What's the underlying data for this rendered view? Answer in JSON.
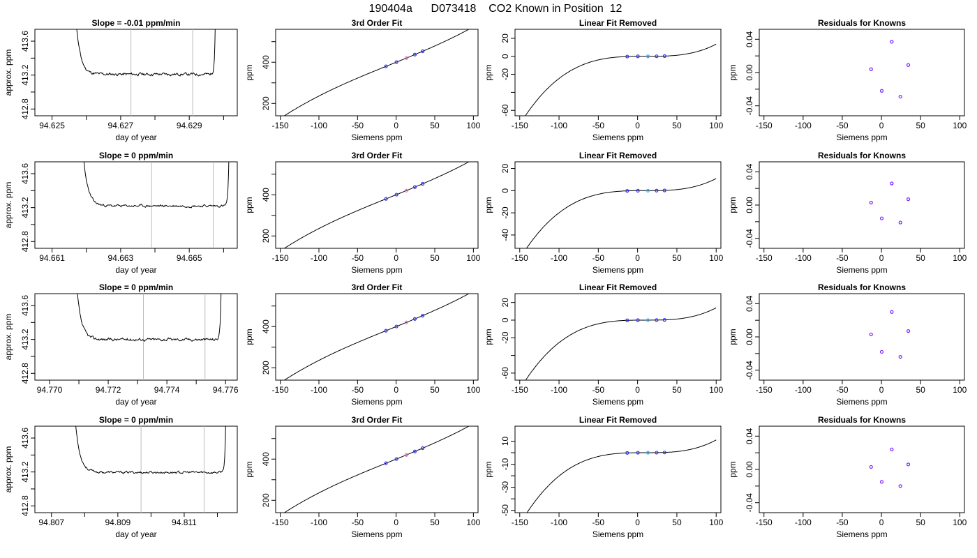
{
  "page": {
    "title": "190404a      D073418    CO2 Known in Position  12"
  },
  "chart_data": [
    {
      "type": "line",
      "title": "Slope =  -0.01  ppm/min",
      "xlabel": "day of year",
      "ylabel": "approx. ppm",
      "xlim": [
        94.6245,
        94.6304
      ],
      "ylim": [
        412.72,
        413.74
      ],
      "xticks": [
        94.625,
        94.627,
        94.629
      ],
      "xticks_minor": [
        94.626,
        94.628,
        94.63
      ],
      "yticks": [
        412.8,
        413.2,
        413.6
      ],
      "yticks_minor": [
        413.0,
        413.4
      ],
      "vlines": [
        94.6273,
        94.6291
      ],
      "baseline": 413.21,
      "window": [
        94.6256,
        94.6298
      ],
      "wiggle_amp": 0.012,
      "seed": 11
    },
    {
      "type": "line",
      "title": "3rd Order Fit",
      "xlabel": "Siemens ppm",
      "ylabel": "ppm",
      "xlim": [
        -156,
        106
      ],
      "ylim": [
        140,
        560
      ],
      "xticks": [
        -150,
        -100,
        -50,
        0,
        50,
        100
      ],
      "yticks": [
        200,
        400
      ],
      "yticks_minor": [
        300,
        500
      ],
      "curve": {
        "kind": "cubic",
        "a0": 400,
        "a1": 1.52,
        "a2": 0.0004,
        "a3": 1.6e-05
      },
      "points_x": [
        -13.2,
        0.4,
        13.2,
        24.2,
        34.3
      ],
      "point_colors": [
        "#3333ff",
        "#3333ff",
        "#ff66cc",
        "#3333ff",
        "#3333ff"
      ]
    },
    {
      "type": "line",
      "title": "Linear Fit Removed",
      "xlabel": "Siemens ppm",
      "ylabel": "ppm",
      "xlim": [
        -156,
        106
      ],
      "ylim": [
        -66,
        30
      ],
      "xticks": [
        -150,
        -100,
        -50,
        0,
        50,
        100
      ],
      "yticks": [
        -60,
        -20,
        0,
        20
      ],
      "yticks_minor": [
        -40
      ],
      "curve": {
        "kind": "residual-cubic",
        "c": 1.85e-05
      },
      "points_x": [
        -13.2,
        0.4,
        13.2,
        24.2,
        34.3
      ],
      "point_colors": [
        "#3333ff",
        "#3333ff",
        "#33aaff",
        "#3333ff",
        "#3333ff"
      ]
    },
    {
      "type": "scatter",
      "title": "Residuals for Knowns",
      "xlabel": "Siemens ppm",
      "ylabel": "ppm",
      "xlim": [
        -156,
        106
      ],
      "ylim": [
        -0.052,
        0.052
      ],
      "xticks": [
        -150,
        -100,
        -50,
        0,
        50,
        100
      ],
      "yticks": [
        -0.04,
        0.0,
        0.04
      ],
      "ytick_labels": [
        "-0.04",
        "0.00",
        "0.04"
      ],
      "yticks_minor": [
        -0.02,
        0.02
      ],
      "x": [
        -13.2,
        0.4,
        13.2,
        24.2,
        34.3
      ],
      "y": [
        0.004,
        -0.022,
        0.037,
        -0.029,
        0.009
      ]
    },
    {
      "type": "line",
      "title": "Slope =  0  ppm/min",
      "xlabel": "day of year",
      "ylabel": "approx. ppm",
      "xlim": [
        94.6605,
        94.6664
      ],
      "ylim": [
        412.72,
        413.74
      ],
      "xticks": [
        94.661,
        94.663,
        94.665
      ],
      "xticks_minor": [
        94.662,
        94.664,
        94.666
      ],
      "yticks": [
        412.8,
        413.2,
        413.6
      ],
      "yticks_minor": [
        413.0,
        413.4
      ],
      "vlines": [
        94.6639,
        94.6657
      ],
      "baseline": 413.22,
      "window": [
        94.6618,
        94.6662
      ],
      "wiggle_amp": 0.01,
      "seed": 23
    },
    {
      "type": "line",
      "title": "3rd Order Fit",
      "xlabel": "Siemens ppm",
      "ylabel": "ppm",
      "xlim": [
        -156,
        106
      ],
      "ylim": [
        140,
        560
      ],
      "xticks": [
        -150,
        -100,
        -50,
        0,
        50,
        100
      ],
      "yticks": [
        200,
        400
      ],
      "yticks_minor": [
        300,
        500
      ],
      "curve": {
        "kind": "cubic",
        "a0": 400,
        "a1": 1.52,
        "a2": 0.0004,
        "a3": 1.6e-05
      },
      "points_x": [
        -13.2,
        0.4,
        13.2,
        24.2,
        34.3
      ],
      "point_colors": [
        "#3333ff",
        "#3333ff",
        "#ff66cc",
        "#3333ff",
        "#3333ff"
      ]
    },
    {
      "type": "line",
      "title": "Linear Fit Removed",
      "xlabel": "Siemens ppm",
      "ylabel": "ppm",
      "xlim": [
        -156,
        106
      ],
      "ylim": [
        -52,
        26
      ],
      "xticks": [
        -150,
        -100,
        -50,
        0,
        50,
        100
      ],
      "yticks": [
        -40,
        -20,
        0,
        20
      ],
      "yticks_minor": [],
      "curve": {
        "kind": "residual-cubic",
        "c": 1.5e-05
      },
      "points_x": [
        -13.2,
        0.4,
        13.2,
        24.2,
        34.3
      ],
      "point_colors": [
        "#3333ff",
        "#3333ff",
        "#33aaff",
        "#3333ff",
        "#3333ff"
      ]
    },
    {
      "type": "scatter",
      "title": "Residuals for Knowns",
      "xlabel": "Siemens ppm",
      "ylabel": "ppm",
      "xlim": [
        -156,
        106
      ],
      "ylim": [
        -0.052,
        0.052
      ],
      "xticks": [
        -150,
        -100,
        -50,
        0,
        50,
        100
      ],
      "yticks": [
        -0.04,
        0.0,
        0.04
      ],
      "ytick_labels": [
        "-0.04",
        "0.00",
        "0.04"
      ],
      "yticks_minor": [
        -0.02,
        0.02
      ],
      "x": [
        -13.2,
        0.4,
        13.2,
        24.2,
        34.3
      ],
      "y": [
        0.003,
        -0.016,
        0.026,
        -0.021,
        0.007
      ]
    },
    {
      "type": "line",
      "title": "Slope =  0  ppm/min",
      "xlabel": "day of year",
      "ylabel": "approx. ppm",
      "xlim": [
        94.7695,
        94.7764
      ],
      "ylim": [
        412.72,
        413.74
      ],
      "xticks": [
        94.77,
        94.772,
        94.774,
        94.776
      ],
      "xticks_minor": [
        94.771,
        94.773,
        94.775
      ],
      "yticks": [
        412.8,
        413.2,
        413.6
      ],
      "yticks_minor": [
        413.0,
        413.4
      ],
      "vlines": [
        94.7732,
        94.7753
      ],
      "baseline": 413.2,
      "window": [
        94.7708,
        94.7759
      ],
      "wiggle_amp": 0.012,
      "seed": 37
    },
    {
      "type": "line",
      "title": "3rd Order Fit",
      "xlabel": "Siemens ppm",
      "ylabel": "ppm",
      "xlim": [
        -156,
        106
      ],
      "ylim": [
        140,
        560
      ],
      "xticks": [
        -150,
        -100,
        -50,
        0,
        50,
        100
      ],
      "yticks": [
        200,
        400
      ],
      "yticks_minor": [
        300,
        500
      ],
      "curve": {
        "kind": "cubic",
        "a0": 400,
        "a1": 1.52,
        "a2": 0.0004,
        "a3": 1.6e-05
      },
      "points_x": [
        -13.2,
        0.4,
        13.2,
        24.2,
        34.3
      ],
      "point_colors": [
        "#3333ff",
        "#3333ff",
        "#ff66cc",
        "#3333ff",
        "#3333ff"
      ]
    },
    {
      "type": "line",
      "title": "Linear Fit Removed",
      "xlabel": "Siemens ppm",
      "ylabel": "ppm",
      "xlim": [
        -156,
        106
      ],
      "ylim": [
        -68,
        30
      ],
      "xticks": [
        -150,
        -100,
        -50,
        0,
        50,
        100
      ],
      "yticks": [
        -60,
        -20,
        0,
        20
      ],
      "yticks_minor": [
        -40
      ],
      "curve": {
        "kind": "residual-cubic",
        "c": 1.92e-05
      },
      "points_x": [
        -13.2,
        0.4,
        13.2,
        24.2,
        34.3
      ],
      "point_colors": [
        "#3333ff",
        "#3333ff",
        "#33aaff",
        "#3333ff",
        "#3333ff"
      ]
    },
    {
      "type": "scatter",
      "title": "Residuals for Knowns",
      "xlabel": "Siemens ppm",
      "ylabel": "ppm",
      "xlim": [
        -156,
        106
      ],
      "ylim": [
        -0.052,
        0.052
      ],
      "xticks": [
        -150,
        -100,
        -50,
        0,
        50,
        100
      ],
      "yticks": [
        -0.04,
        0.0,
        0.04
      ],
      "ytick_labels": [
        "-0.04",
        "0.00",
        "0.04"
      ],
      "yticks_minor": [
        -0.02,
        0.02
      ],
      "x": [
        -13.2,
        0.4,
        13.2,
        24.2,
        34.3
      ],
      "y": [
        0.003,
        -0.018,
        0.03,
        -0.024,
        0.007
      ]
    },
    {
      "type": "line",
      "title": "Slope =  0  ppm/min",
      "xlabel": "day of year",
      "ylabel": "approx. ppm",
      "xlim": [
        94.8065,
        94.8126
      ],
      "ylim": [
        412.72,
        413.74
      ],
      "xticks": [
        94.807,
        94.809,
        94.811
      ],
      "xticks_minor": [
        94.808,
        94.81,
        94.812
      ],
      "yticks": [
        412.8,
        413.2,
        413.6
      ],
      "yticks_minor": [
        413.0,
        413.4
      ],
      "vlines": [
        94.8097,
        94.8116
      ],
      "baseline": 413.195,
      "window": [
        94.8076,
        94.8123
      ],
      "wiggle_amp": 0.01,
      "seed": 53
    },
    {
      "type": "line",
      "title": "3rd Order Fit",
      "xlabel": "Siemens ppm",
      "ylabel": "ppm",
      "xlim": [
        -156,
        106
      ],
      "ylim": [
        140,
        560
      ],
      "xticks": [
        -150,
        -100,
        -50,
        0,
        50,
        100
      ],
      "yticks": [
        200,
        400
      ],
      "yticks_minor": [
        300,
        500
      ],
      "curve": {
        "kind": "cubic",
        "a0": 400,
        "a1": 1.52,
        "a2": 0.0004,
        "a3": 1.6e-05
      },
      "points_x": [
        -13.2,
        0.4,
        13.2,
        24.2,
        34.3
      ],
      "point_colors": [
        "#3333ff",
        "#3333ff",
        "#ff66cc",
        "#3333ff",
        "#3333ff"
      ]
    },
    {
      "type": "line",
      "title": "Linear Fit Removed",
      "xlabel": "Siemens ppm",
      "ylabel": "ppm",
      "xlim": [
        -156,
        106
      ],
      "ylim": [
        -52,
        23
      ],
      "xticks": [
        -150,
        -100,
        -50,
        0,
        50,
        100
      ],
      "yticks": [
        -50,
        -30,
        -10,
        10
      ],
      "yticks_minor": [
        -40,
        -20,
        0
      ],
      "curve": {
        "kind": "residual-cubic",
        "c": 1.52e-05
      },
      "points_x": [
        -13.2,
        0.4,
        13.2,
        24.2,
        34.3
      ],
      "point_colors": [
        "#3333ff",
        "#3333ff",
        "#33aaff",
        "#3333ff",
        "#3333ff"
      ]
    },
    {
      "type": "scatter",
      "title": "Residuals for Knowns",
      "xlabel": "Siemens ppm",
      "ylabel": "ppm",
      "xlim": [
        -156,
        106
      ],
      "ylim": [
        -0.052,
        0.052
      ],
      "xticks": [
        -150,
        -100,
        -50,
        0,
        50,
        100
      ],
      "yticks": [
        -0.04,
        0.0,
        0.04
      ],
      "ytick_labels": [
        "-0.04",
        "0.00",
        "0.04"
      ],
      "yticks_minor": [
        -0.02,
        0.02
      ],
      "x": [
        -13.2,
        0.4,
        13.2,
        24.2,
        34.3
      ],
      "y": [
        0.003,
        -0.015,
        0.024,
        -0.02,
        0.006
      ]
    }
  ]
}
